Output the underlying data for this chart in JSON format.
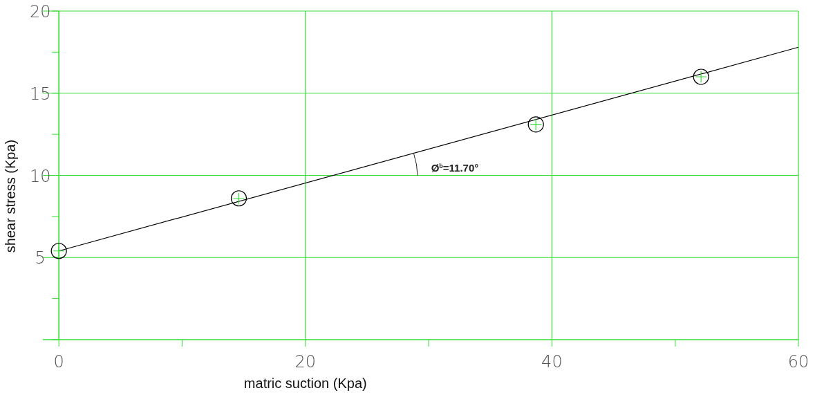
{
  "chart_data": {
    "type": "scatter",
    "xlabel": "matric suction (Kpa)",
    "ylabel": "shear stress (Kpa)",
    "xlim": [
      -1.3,
      60
    ],
    "ylim": [
      0,
      20
    ],
    "xticks": [
      0,
      {
        "value": 10,
        "label": null
      },
      20,
      {
        "value": 30,
        "label": null
      },
      40,
      {
        "value": 50,
        "label": null
      },
      60
    ],
    "yticks": [
      {
        "value": 0,
        "label": null
      },
      {
        "value": 2.5,
        "label": null
      },
      5,
      {
        "value": 7.5,
        "label": null
      },
      10,
      {
        "value": 12.5,
        "label": null
      },
      15,
      {
        "value": 17.5,
        "label": null
      },
      20
    ],
    "grid": true,
    "series": [
      {
        "color": "#000000",
        "x": [
          0,
          14.6,
          38.7,
          52.1
        ],
        "values": [
          5.4,
          8.6,
          13.1,
          16.0
        ]
      },
      {
        "type": "line",
        "color": "#000000",
        "x": [
          0,
          60
        ],
        "values": [
          5.4,
          17.8
        ]
      }
    ],
    "annotations": [
      "Ø$^{b}$=11.70°"
    ]
  }
}
